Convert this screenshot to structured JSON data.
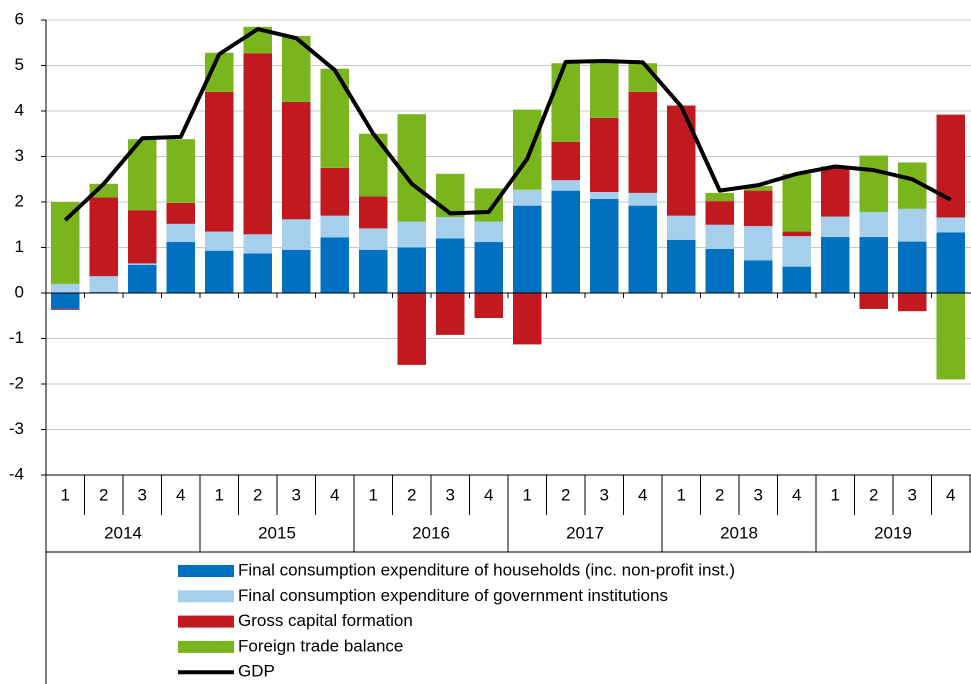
{
  "chart_data": {
    "type": "bar",
    "stacked": true,
    "categories": [
      "1",
      "2",
      "3",
      "4",
      "1",
      "2",
      "3",
      "4",
      "1",
      "2",
      "3",
      "4",
      "1",
      "2",
      "3",
      "4",
      "1",
      "2",
      "3",
      "4",
      "1",
      "2",
      "3",
      "4"
    ],
    "groups": [
      "2014",
      "2015",
      "2016",
      "2017",
      "2018",
      "2019"
    ],
    "series": [
      {
        "name": "Final consumption expenditure of households (inc. non-profit inst.)",
        "color": "#0070c0",
        "values": [
          -0.35,
          0.02,
          0.62,
          1.12,
          0.93,
          0.87,
          0.95,
          1.22,
          0.95,
          1.0,
          1.2,
          1.12,
          1.92,
          2.25,
          2.07,
          1.92,
          1.17,
          0.97,
          0.72,
          0.58,
          1.23,
          1.23,
          1.13,
          1.33
        ]
      },
      {
        "name": "Final consumption expenditure of government institutions",
        "color": "#a6cfee",
        "values": [
          0.2,
          0.35,
          0.03,
          0.4,
          0.42,
          0.42,
          0.67,
          0.48,
          0.47,
          0.57,
          0.47,
          0.45,
          0.35,
          0.23,
          0.15,
          0.28,
          0.53,
          0.53,
          0.75,
          0.67,
          0.45,
          0.55,
          0.72,
          0.33
        ]
      },
      {
        "name": "Gross capital formation",
        "color": "#c0191f",
        "values": [
          -0.02,
          1.73,
          1.17,
          0.46,
          3.07,
          3.98,
          2.58,
          1.05,
          0.7,
          -1.58,
          -0.92,
          -0.55,
          -1.13,
          0.84,
          1.63,
          2.22,
          2.42,
          0.52,
          0.78,
          0.1,
          1.1,
          -0.35,
          -0.4,
          2.26
        ]
      },
      {
        "name": "Foreign trade balance",
        "color": "#7ab51d",
        "values": [
          1.8,
          0.3,
          1.56,
          1.4,
          0.86,
          0.58,
          1.45,
          2.18,
          1.38,
          2.36,
          0.95,
          0.73,
          1.76,
          1.73,
          1.25,
          0.63,
          0,
          0.18,
          0.1,
          1.27,
          0,
          1.24,
          1.02,
          -1.9
        ]
      }
    ],
    "line": {
      "name": "GDP",
      "color": "#000000",
      "values": [
        1.6,
        2.4,
        3.4,
        3.43,
        5.25,
        5.8,
        5.6,
        4.9,
        3.5,
        2.4,
        1.75,
        1.78,
        2.95,
        5.08,
        5.1,
        5.07,
        4.1,
        2.25,
        2.37,
        2.62,
        2.78,
        2.7,
        2.5,
        2.05
      ]
    },
    "ylim": [
      -4,
      6
    ],
    "yticks": [
      -4,
      -3,
      -2,
      -1,
      0,
      1,
      2,
      3,
      4,
      5,
      6
    ],
    "grid": true
  }
}
